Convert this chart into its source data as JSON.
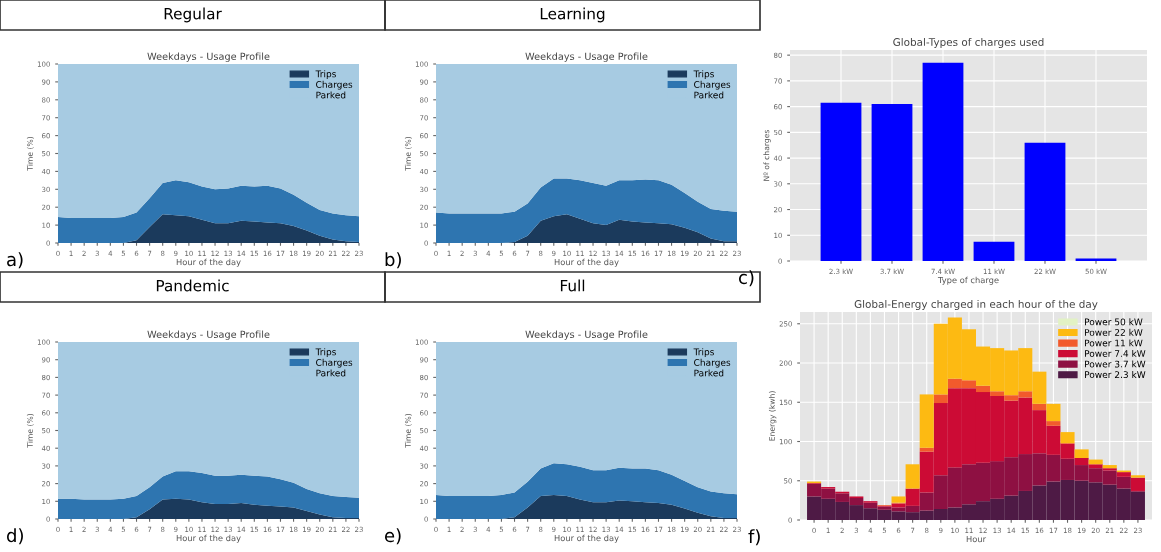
{
  "chart_data": [
    {
      "type": "area",
      "stacked": true,
      "title": "Regular",
      "subtitle": "Weekdays - Usage Profile",
      "xlabel": "Hour of the day",
      "ylabel": "Time (%)",
      "annotations": [
        "a)"
      ],
      "legend": "top right",
      "x": [
        0,
        1,
        2,
        3,
        4,
        5,
        6,
        7,
        8,
        9,
        10,
        11,
        12,
        13,
        14,
        15,
        16,
        17,
        18,
        19,
        20,
        21,
        22,
        23
      ],
      "xlim": [
        0,
        23
      ],
      "xticks": [
        0,
        1,
        2,
        3,
        4,
        5,
        6,
        7,
        8,
        9,
        10,
        11,
        12,
        13,
        14,
        15,
        16,
        17,
        18,
        19,
        20,
        21,
        22,
        23
      ],
      "ylim": [
        0,
        100
      ],
      "yticks": [
        0,
        10,
        20,
        30,
        40,
        50,
        60,
        70,
        80,
        90,
        100
      ],
      "series": [
        {
          "name": "Trips",
          "color": "#1b3a5c",
          "values": [
            0,
            0,
            0,
            0,
            0,
            0,
            1.5,
            9,
            16,
            15.5,
            15,
            13,
            11,
            11,
            12.5,
            12,
            11.5,
            11,
            9.5,
            7,
            4,
            2,
            1,
            0.5
          ]
        },
        {
          "name": "Charges",
          "color": "#2e75b0",
          "values": [
            14.5,
            14,
            14,
            14,
            14,
            14.5,
            15.5,
            16,
            17.5,
            19.5,
            19,
            18.5,
            19,
            19.5,
            19.5,
            19.5,
            20.5,
            19.5,
            17.5,
            15.5,
            14.5,
            14.5,
            14.5,
            14.5
          ]
        },
        {
          "name": "Parked",
          "color": "#a7cbe2",
          "values": [
            85.5,
            86,
            86,
            86,
            86,
            85.5,
            83,
            75,
            66.5,
            65,
            66,
            68.5,
            70,
            69.5,
            68,
            68.5,
            68,
            69.5,
            73,
            77.5,
            81.5,
            83.5,
            84.5,
            85
          ]
        }
      ]
    },
    {
      "type": "area",
      "stacked": true,
      "title": "Learning",
      "subtitle": "Weekdays - Usage Profile",
      "xlabel": "Hour of the day",
      "ylabel": "Time (%)",
      "annotations": [
        "b)"
      ],
      "legend": "top right",
      "x": [
        0,
        1,
        2,
        3,
        4,
        5,
        6,
        7,
        8,
        9,
        10,
        11,
        12,
        13,
        14,
        15,
        16,
        17,
        18,
        19,
        20,
        21,
        22,
        23
      ],
      "xlim": [
        0,
        23
      ],
      "xticks": [
        0,
        1,
        2,
        3,
        4,
        5,
        6,
        7,
        8,
        9,
        10,
        11,
        12,
        13,
        14,
        15,
        16,
        17,
        18,
        19,
        20,
        21,
        22,
        23
      ],
      "ylim": [
        0,
        100
      ],
      "yticks": [
        0,
        10,
        20,
        30,
        40,
        50,
        60,
        70,
        80,
        90,
        100
      ],
      "series": [
        {
          "name": "Trips",
          "color": "#1b3a5c",
          "values": [
            0,
            0,
            0,
            0,
            0,
            0,
            0.5,
            4,
            12.5,
            15,
            16,
            13.5,
            11,
            10,
            13,
            12,
            11.5,
            11,
            10.5,
            8.5,
            6,
            2.5,
            1,
            1
          ]
        },
        {
          "name": "Charges",
          "color": "#2e75b0",
          "values": [
            17,
            16.5,
            16.5,
            16.5,
            16.5,
            16.5,
            17,
            18,
            18.5,
            21,
            20,
            21.5,
            22.5,
            22,
            22,
            23,
            24,
            24,
            22,
            19.5,
            17,
            16.5,
            17,
            16.5
          ]
        },
        {
          "name": "Parked",
          "color": "#a7cbe2",
          "values": [
            83,
            83.5,
            83.5,
            83.5,
            83.5,
            83.5,
            82.5,
            78,
            69,
            64,
            64,
            65,
            66.5,
            68,
            65,
            65,
            64.5,
            65,
            67.5,
            72,
            77,
            81,
            82,
            82.5
          ]
        }
      ]
    },
    {
      "type": "bar",
      "title": "Global-Types of charges used",
      "xlabel": "Type of charge",
      "ylabel": "Nº of charges",
      "annotations": [
        "c)"
      ],
      "grid": true,
      "categories": [
        "2.3 kW",
        "3.7 kW",
        "7.4 kW",
        "11 kW",
        "22 kW",
        "50 kW"
      ],
      "values": [
        61.5,
        61,
        77,
        7.5,
        46,
        1
      ],
      "color": "#0000ff",
      "ylim": [
        0,
        82
      ],
      "yticks": [
        0,
        10,
        20,
        30,
        40,
        50,
        60,
        70,
        80
      ]
    },
    {
      "type": "area",
      "stacked": true,
      "title": "Pandemic",
      "subtitle": "Weekdays - Usage Profile",
      "xlabel": "Hour of the day",
      "ylabel": "Time (%)",
      "annotations": [
        "d)"
      ],
      "legend": "top right",
      "x": [
        0,
        1,
        2,
        3,
        4,
        5,
        6,
        7,
        8,
        9,
        10,
        11,
        12,
        13,
        14,
        15,
        16,
        17,
        18,
        19,
        20,
        21,
        22,
        23
      ],
      "xlim": [
        0,
        23
      ],
      "xticks": [
        0,
        1,
        2,
        3,
        4,
        5,
        6,
        7,
        8,
        9,
        10,
        11,
        12,
        13,
        14,
        15,
        16,
        17,
        18,
        19,
        20,
        21,
        22,
        23
      ],
      "ylim": [
        0,
        100
      ],
      "yticks": [
        0,
        10,
        20,
        30,
        40,
        50,
        60,
        70,
        80,
        90,
        100
      ],
      "series": [
        {
          "name": "Trips",
          "color": "#1b3a5c",
          "values": [
            0,
            0,
            0,
            0,
            0,
            0,
            1,
            5.5,
            11,
            11.5,
            11,
            9.5,
            8.5,
            8.5,
            9,
            8,
            7.5,
            7,
            6.5,
            4.5,
            2.5,
            1,
            0.5,
            0.5
          ]
        },
        {
          "name": "Charges",
          "color": "#2e75b0",
          "values": [
            11.5,
            11.5,
            11,
            11,
            11,
            11.5,
            12,
            12.5,
            13,
            15.5,
            16,
            16.5,
            16,
            16,
            16,
            16.5,
            16.5,
            15.5,
            14,
            12.5,
            12,
            12,
            12,
            11.5
          ]
        },
        {
          "name": "Parked",
          "color": "#a7cbe2",
          "values": [
            88.5,
            88.5,
            89,
            89,
            89,
            88.5,
            87,
            82,
            76,
            73,
            73,
            74,
            75.5,
            75.5,
            75,
            75.5,
            76,
            77.5,
            79.5,
            83,
            85.5,
            87,
            87.5,
            88
          ]
        }
      ]
    },
    {
      "type": "area",
      "stacked": true,
      "title": "Full",
      "subtitle": "Weekdays - Usage Profile",
      "xlabel": "Hour of the day",
      "ylabel": "Time (%)",
      "annotations": [
        "e)"
      ],
      "legend": "top right",
      "x": [
        0,
        1,
        2,
        3,
        4,
        5,
        6,
        7,
        8,
        9,
        10,
        11,
        12,
        13,
        14,
        15,
        16,
        17,
        18,
        19,
        20,
        21,
        22,
        23
      ],
      "xlim": [
        0,
        23
      ],
      "xticks": [
        0,
        1,
        2,
        3,
        4,
        5,
        6,
        7,
        8,
        9,
        10,
        11,
        12,
        13,
        14,
        15,
        16,
        17,
        18,
        19,
        20,
        21,
        22,
        23
      ],
      "ylim": [
        0,
        100
      ],
      "yticks": [
        0,
        10,
        20,
        30,
        40,
        50,
        60,
        70,
        80,
        90,
        100
      ],
      "series": [
        {
          "name": "Trips",
          "color": "#1b3a5c",
          "values": [
            0,
            0,
            0,
            0,
            0,
            0,
            1,
            6.5,
            13,
            13.5,
            13,
            11,
            9.5,
            9.5,
            10.5,
            10,
            9.5,
            9,
            8,
            6,
            3.5,
            1.5,
            0.5,
            0.5
          ]
        },
        {
          "name": "Charges",
          "color": "#2e75b0",
          "values": [
            13.5,
            13,
            13,
            13,
            13,
            13.5,
            14,
            14.5,
            15.5,
            18,
            18,
            18.5,
            18,
            18,
            18.5,
            18.5,
            19,
            18.5,
            17,
            15.5,
            14.5,
            14,
            14,
            13.5
          ]
        },
        {
          "name": "Parked",
          "color": "#a7cbe2",
          "values": [
            86.5,
            87,
            87,
            87,
            87,
            86.5,
            85,
            79,
            71.5,
            68.5,
            69,
            70.5,
            72.5,
            72.5,
            71,
            71.5,
            71.5,
            72.5,
            75,
            78.5,
            82,
            84.5,
            85.5,
            86
          ]
        }
      ]
    },
    {
      "type": "bar",
      "stacked": true,
      "title": "Global-Energy charged in each hour of the day",
      "xlabel": "Hour",
      "ylabel": "Energy (kwh)",
      "annotations": [
        "f)"
      ],
      "grid": true,
      "legend": "top right",
      "categories": [
        "0",
        "1",
        "2",
        "3",
        "4",
        "5",
        "6",
        "7",
        "8",
        "9",
        "10",
        "11",
        "12",
        "13",
        "14",
        "15",
        "16",
        "17",
        "18",
        "19",
        "20",
        "21",
        "22",
        "23"
      ],
      "ylim": [
        0,
        265
      ],
      "yticks": [
        0,
        50,
        100,
        150,
        200,
        250
      ],
      "series": [
        {
          "name": "Power 2.3 kW",
          "color": "#4e1a45",
          "values": [
            30,
            27,
            23,
            19,
            15,
            13,
            11,
            10,
            12,
            14,
            16,
            20,
            24,
            27,
            31,
            37,
            44,
            49,
            51,
            50,
            48,
            45,
            40,
            36
          ]
        },
        {
          "name": "Power 3.7 kW",
          "color": "#8e1042",
          "values": [
            16,
            13,
            11,
            9,
            7,
            4,
            5,
            8,
            23,
            43,
            51,
            51,
            49,
            48,
            49,
            47,
            41,
            34,
            27,
            20,
            18,
            18,
            15,
            1
          ]
        },
        {
          "name": "Power 7.4 kW",
          "color": "#cc0b35",
          "values": [
            1,
            2,
            2,
            2,
            2,
            1,
            5,
            22,
            52,
            92,
            101,
            97,
            90,
            83,
            72,
            72,
            55,
            37,
            19,
            9,
            5,
            3,
            6,
            17
          ]
        },
        {
          "name": "Power 11 kW",
          "color": "#f25a2c",
          "values": [
            0,
            0,
            0,
            0,
            0,
            1,
            1,
            0,
            5,
            11,
            12,
            10,
            8,
            6,
            7,
            8,
            8,
            6,
            1,
            0,
            0,
            0,
            0,
            0
          ]
        },
        {
          "name": "Power 22 kW",
          "color": "#fdba12",
          "values": [
            2,
            0,
            0,
            0,
            0,
            0,
            8,
            31,
            68,
            90,
            78,
            65,
            50,
            55,
            57,
            55,
            41,
            22,
            14,
            11,
            6,
            4,
            2,
            3
          ]
        },
        {
          "name": "Power 50 kW",
          "color": "#e2f2c4",
          "values": [
            0,
            0,
            0,
            0,
            0,
            0,
            0,
            0,
            0,
            0,
            0,
            0,
            0,
            0,
            0,
            0,
            0,
            0,
            0,
            0,
            0,
            0,
            0,
            0
          ]
        }
      ]
    }
  ]
}
